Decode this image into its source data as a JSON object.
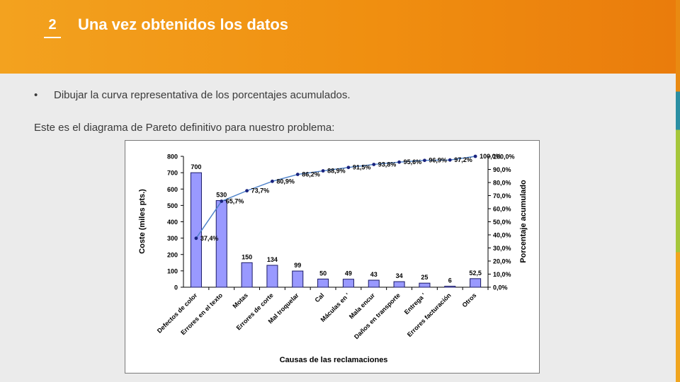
{
  "slide": {
    "number": "2",
    "title": "Una vez obtenidos los datos",
    "bullet": "Dibujar la curva representativa de los porcentajes acumulados.",
    "paragraph": "Este es el diagrama de Pareto definitivo para nuestro problema:"
  },
  "colors": {
    "header": "#f08f10",
    "bar_fill": "#9999ff",
    "line": "#4a7fc8",
    "marker": "#1a237e"
  },
  "chart_data": {
    "type": "bar",
    "title": "",
    "xlabel": "Causas de las reclamaciones",
    "ylabel": "Coste (miles pts.)",
    "y2label": "Porcentaje acumulado",
    "ylim": [
      0,
      800
    ],
    "y2lim": [
      0,
      100
    ],
    "yticks": [
      "0",
      "100",
      "200",
      "300",
      "400",
      "500",
      "600",
      "700",
      "800"
    ],
    "y2ticks": [
      "0,0%",
      "10,0%",
      "20,0%",
      "30,0%",
      "40,0%",
      "50,0%",
      "60,0%",
      "70,0%",
      "80,0%",
      "90,0%",
      "100,0%"
    ],
    "categories": [
      "Defectos de color",
      "Errores en el texto",
      "Motas",
      "Errores de corte",
      "Mal troquelar",
      "Cal",
      "Máculas en '",
      "Mala encur",
      "Daños en transporte",
      "Entrega '",
      "Errores facturación",
      "Otros"
    ],
    "values": [
      700,
      530,
      150,
      134,
      99,
      50,
      49,
      43,
      34,
      25,
      6,
      52.5
    ],
    "value_labels": [
      "700",
      "530",
      "150",
      "134",
      "99",
      "50",
      "49",
      "43",
      "34",
      "25",
      "6",
      "52,5"
    ],
    "cumulative": [
      37.4,
      65.7,
      73.7,
      80.9,
      86.2,
      88.9,
      91.5,
      93.8,
      95.6,
      96.9,
      97.2,
      100.0
    ],
    "cumulative_labels": [
      "37,4%",
      "65,7%",
      "73,7%",
      "80,9%",
      "86,2%",
      "88,9%",
      "91,5%",
      "93,8%",
      "95,6%",
      "96,9%",
      "97,2%",
      "100,0%"
    ],
    "grid": false,
    "legend": "none"
  }
}
